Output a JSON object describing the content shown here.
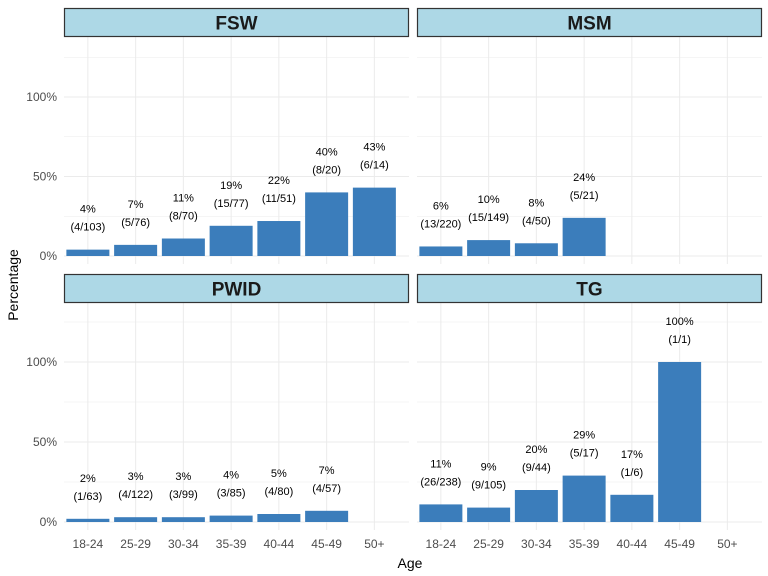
{
  "chart_data": {
    "type": "bar",
    "xlabel": "Age",
    "ylabel": "Percentage",
    "categories": [
      "18-24",
      "25-29",
      "30-34",
      "35-39",
      "40-44",
      "45-49",
      "50+"
    ],
    "yticks": [
      "0%",
      "50%",
      "100%"
    ],
    "ylim": [
      0,
      130
    ],
    "grid": true,
    "bar_color": "#3b7dbb",
    "strip_color": "#add8e6",
    "panels": [
      {
        "title": "FSW",
        "values": [
          4,
          7,
          11,
          19,
          22,
          40,
          43
        ],
        "labels": [
          "4%",
          "7%",
          "11%",
          "19%",
          "22%",
          "40%",
          "43%"
        ],
        "counts": [
          "(4/103)",
          "(5/76)",
          "(8/70)",
          "(15/77)",
          "(11/51)",
          "(8/20)",
          "(6/14)"
        ]
      },
      {
        "title": "MSM",
        "values": [
          6,
          10,
          8,
          24,
          null,
          null,
          null
        ],
        "labels": [
          "6%",
          "10%",
          "8%",
          "24%",
          null,
          null,
          null
        ],
        "counts": [
          "(13/220)",
          "(15/149)",
          "(4/50)",
          "(5/21)",
          null,
          null,
          null
        ]
      },
      {
        "title": "PWID",
        "values": [
          2,
          3,
          3,
          4,
          5,
          7,
          null
        ],
        "labels": [
          "2%",
          "3%",
          "3%",
          "4%",
          "5%",
          "7%",
          null
        ],
        "counts": [
          "(1/63)",
          "(4/122)",
          "(3/99)",
          "(3/85)",
          "(4/80)",
          "(4/57)",
          null
        ]
      },
      {
        "title": "TG",
        "values": [
          11,
          9,
          20,
          29,
          17,
          100,
          null
        ],
        "labels": [
          "11%",
          "9%",
          "20%",
          "29%",
          "17%",
          "100%",
          null
        ],
        "counts": [
          "(26/238)",
          "(9/105)",
          "(9/44)",
          "(5/17)",
          "(1/6)",
          "(1/1)",
          null
        ]
      }
    ]
  }
}
